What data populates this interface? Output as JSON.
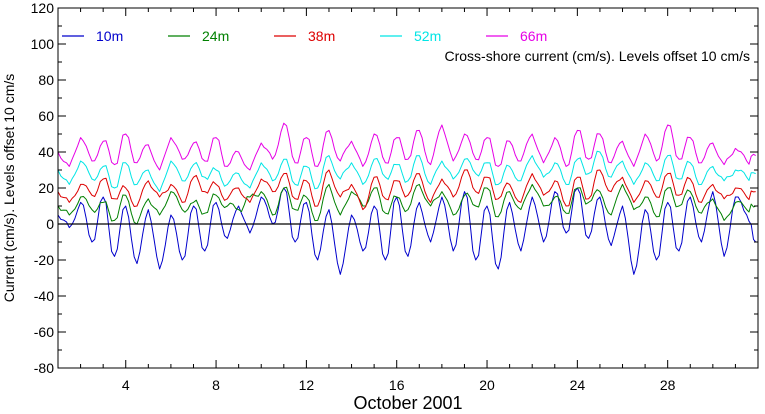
{
  "chart_data": {
    "type": "line",
    "title": "",
    "annotation": "Cross-shore current (cm/s). Levels offset 10 cm/s",
    "xlabel": "October 2001",
    "ylabel": "Current (cm/s). Levels offset 10 cm/s",
    "xlim": [
      1,
      32
    ],
    "ylim": [
      -80,
      120
    ],
    "x_ticks": [
      4,
      8,
      12,
      16,
      20,
      24,
      28
    ],
    "x_minor_step": 1,
    "y_ticks": [
      -80,
      -60,
      -40,
      -20,
      0,
      20,
      40,
      60,
      80,
      100,
      120
    ],
    "y_minor_step": 10,
    "zero_line": 0,
    "grid": false,
    "legend_position": "top-left, horizontal",
    "x_units": "day of October 2001",
    "series": [
      {
        "name": "10m",
        "color": "#0000cc",
        "x": [
          1.0,
          1.5,
          2.0,
          2.5,
          3.0,
          3.5,
          4.0,
          4.5,
          5.0,
          5.5,
          6.0,
          6.5,
          7.0,
          7.5,
          8.0,
          8.5,
          9.0,
          9.5,
          10.0,
          10.5,
          11.0,
          11.5,
          12.0,
          12.5,
          13.0,
          13.5,
          14.0,
          14.5,
          15.0,
          15.5,
          16.0,
          16.5,
          17.0,
          17.5,
          18.0,
          18.5,
          19.0,
          19.5,
          20.0,
          20.5,
          21.0,
          21.5,
          22.0,
          22.5,
          23.0,
          23.5,
          24.0,
          24.5,
          25.0,
          25.5,
          26.0,
          26.5,
          27.0,
          27.5,
          28.0,
          28.5,
          29.0,
          29.5,
          30.0,
          30.5,
          31.0,
          31.5,
          31.9
        ],
        "values": [
          5,
          -2,
          12,
          -10,
          15,
          -18,
          10,
          -22,
          8,
          -25,
          5,
          -20,
          10,
          -15,
          12,
          -8,
          10,
          -5,
          15,
          0,
          20,
          -10,
          12,
          -20,
          8,
          -28,
          5,
          -15,
          10,
          -20,
          15,
          -18,
          12,
          -10,
          15,
          -15,
          18,
          -20,
          10,
          -25,
          12,
          -15,
          15,
          -10,
          18,
          -5,
          20,
          -8,
          15,
          -12,
          10,
          -28,
          8,
          -20,
          12,
          -15,
          15,
          -10,
          18,
          -18,
          15,
          5,
          -10
        ]
      },
      {
        "name": "24m",
        "color": "#008000",
        "x": [
          1.0,
          1.5,
          2.0,
          2.5,
          3.0,
          3.5,
          4.0,
          4.5,
          5.0,
          5.5,
          6.0,
          6.5,
          7.0,
          7.5,
          8.0,
          8.5,
          9.0,
          9.5,
          10.0,
          10.5,
          11.0,
          11.5,
          12.0,
          12.5,
          13.0,
          13.5,
          14.0,
          14.5,
          15.0,
          15.5,
          16.0,
          16.5,
          17.0,
          17.5,
          18.0,
          18.5,
          19.0,
          19.5,
          20.0,
          20.5,
          21.0,
          21.5,
          22.0,
          22.5,
          23.0,
          23.5,
          24.0,
          24.5,
          25.0,
          25.5,
          26.0,
          26.5,
          27.0,
          27.5,
          28.0,
          28.5,
          29.0,
          29.5,
          30.0,
          30.5,
          31.0,
          31.5,
          31.9
        ],
        "values": [
          10,
          5,
          15,
          8,
          12,
          2,
          16,
          0,
          14,
          5,
          18,
          8,
          12,
          6,
          16,
          10,
          8,
          15,
          18,
          5,
          20,
          8,
          15,
          2,
          22,
          5,
          18,
          10,
          20,
          6,
          15,
          8,
          22,
          10,
          18,
          5,
          16,
          10,
          20,
          4,
          18,
          8,
          22,
          10,
          15,
          6,
          20,
          12,
          18,
          5,
          22,
          8,
          15,
          4,
          20,
          10,
          18,
          6,
          14,
          2,
          12,
          8,
          10
        ]
      },
      {
        "name": "38m",
        "color": "#dd0000",
        "x": [
          1.0,
          1.5,
          2.0,
          2.5,
          3.0,
          3.5,
          4.0,
          4.5,
          5.0,
          5.5,
          6.0,
          6.5,
          7.0,
          7.5,
          8.0,
          8.5,
          9.0,
          9.5,
          10.0,
          10.5,
          11.0,
          11.5,
          12.0,
          12.5,
          13.0,
          13.5,
          14.0,
          14.5,
          15.0,
          15.5,
          16.0,
          16.5,
          17.0,
          17.5,
          18.0,
          18.5,
          19.0,
          19.5,
          20.0,
          20.5,
          21.0,
          21.5,
          22.0,
          22.5,
          23.0,
          23.5,
          24.0,
          24.5,
          25.0,
          25.5,
          26.0,
          26.5,
          27.0,
          27.5,
          28.0,
          28.5,
          29.0,
          29.5,
          30.0,
          30.5,
          31.0,
          31.5,
          31.9
        ],
        "values": [
          18,
          12,
          22,
          16,
          25,
          14,
          20,
          10,
          24,
          15,
          22,
          12,
          26,
          18,
          22,
          14,
          20,
          12,
          25,
          18,
          28,
          14,
          24,
          10,
          30,
          15,
          22,
          8,
          26,
          14,
          24,
          16,
          28,
          12,
          25,
          15,
          30,
          18,
          26,
          14,
          22,
          12,
          28,
          16,
          24,
          10,
          26,
          14,
          30,
          18,
          26,
          12,
          24,
          15,
          28,
          16,
          25,
          12,
          22,
          14,
          20,
          15,
          18
        ]
      },
      {
        "name": "52m",
        "color": "#00e5e5",
        "x": [
          1.0,
          1.5,
          2.0,
          2.5,
          3.0,
          3.5,
          4.0,
          4.5,
          5.0,
          5.5,
          6.0,
          6.5,
          7.0,
          7.5,
          8.0,
          8.5,
          9.0,
          9.5,
          10.0,
          10.5,
          11.0,
          11.5,
          12.0,
          12.5,
          13.0,
          13.5,
          14.0,
          14.5,
          15.0,
          15.5,
          16.0,
          16.5,
          17.0,
          17.5,
          18.0,
          18.5,
          19.0,
          19.5,
          20.0,
          20.5,
          21.0,
          21.5,
          22.0,
          22.5,
          23.0,
          23.5,
          24.0,
          24.5,
          25.0,
          25.5,
          26.0,
          26.5,
          27.0,
          27.5,
          28.0,
          28.5,
          29.0,
          29.5,
          30.0,
          30.5,
          31.0,
          31.5,
          31.9
        ],
        "values": [
          30,
          22,
          35,
          25,
          32,
          20,
          34,
          22,
          30,
          18,
          35,
          24,
          33,
          26,
          30,
          22,
          28,
          20,
          34,
          24,
          36,
          22,
          32,
          20,
          38,
          25,
          34,
          22,
          36,
          26,
          33,
          24,
          38,
          22,
          35,
          25,
          36,
          28,
          34,
          22,
          32,
          24,
          38,
          26,
          34,
          22,
          36,
          28,
          40,
          26,
          35,
          22,
          34,
          24,
          38,
          25,
          34,
          22,
          32,
          24,
          30,
          26,
          28
        ]
      },
      {
        "name": "66m",
        "color": "#e600e6",
        "x": [
          1.0,
          1.5,
          2.0,
          2.5,
          3.0,
          3.5,
          4.0,
          4.5,
          5.0,
          5.5,
          6.0,
          6.5,
          7.0,
          7.5,
          8.0,
          8.5,
          9.0,
          9.5,
          10.0,
          10.5,
          11.0,
          11.5,
          12.0,
          12.5,
          13.0,
          13.5,
          14.0,
          14.5,
          15.0,
          15.5,
          16.0,
          16.5,
          17.0,
          17.5,
          18.0,
          18.5,
          19.0,
          19.5,
          20.0,
          20.5,
          21.0,
          21.5,
          22.0,
          22.5,
          23.0,
          23.5,
          24.0,
          24.5,
          25.0,
          25.5,
          26.0,
          26.5,
          27.0,
          27.5,
          28.0,
          28.5,
          29.0,
          29.5,
          30.0,
          30.5,
          31.0,
          31.5,
          31.9
        ],
        "values": [
          40,
          32,
          48,
          35,
          46,
          33,
          50,
          34,
          44,
          30,
          48,
          36,
          45,
          35,
          48,
          32,
          40,
          30,
          45,
          36,
          56,
          34,
          48,
          32,
          52,
          35,
          46,
          32,
          50,
          34,
          48,
          36,
          52,
          33,
          55,
          35,
          50,
          36,
          48,
          32,
          46,
          35,
          50,
          34,
          48,
          32,
          52,
          36,
          50,
          34,
          46,
          32,
          50,
          35,
          55,
          36,
          48,
          34,
          45,
          33,
          42,
          35,
          38
        ]
      }
    ]
  }
}
